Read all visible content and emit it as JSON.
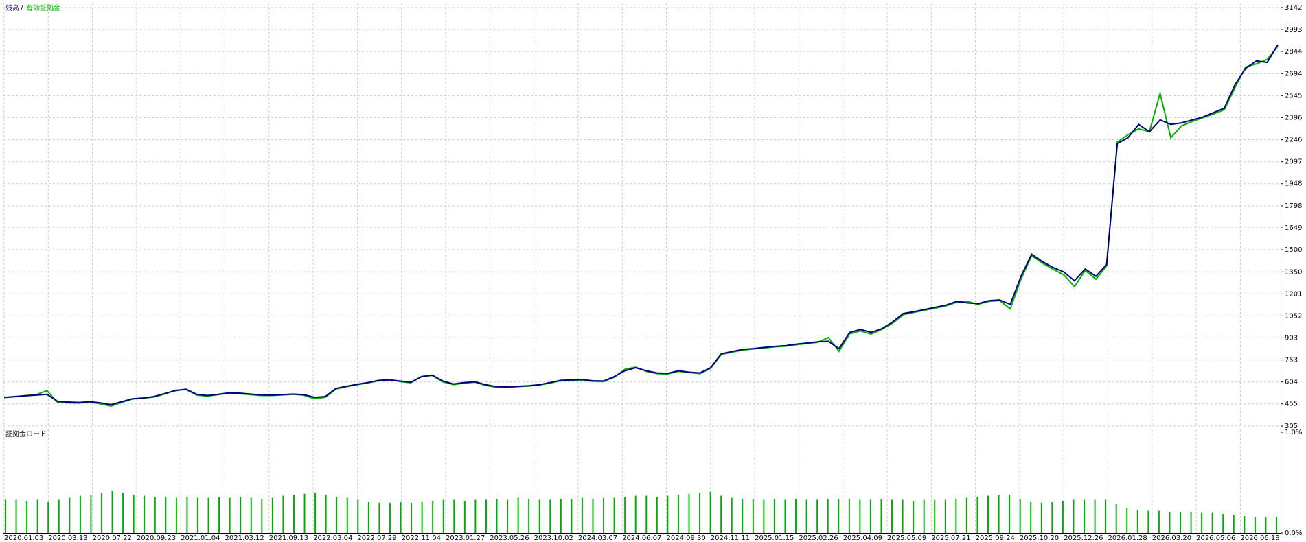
{
  "chart_data": {
    "type": "line",
    "legend": [
      "残高",
      "/",
      "有効証拠金"
    ],
    "ylim": [
      305,
      3142
    ],
    "yticks": [
      3142,
      2993,
      2844,
      2694,
      2545,
      2396,
      2246,
      2097,
      1948,
      1798,
      1649,
      1500,
      1350,
      1201,
      1052,
      903,
      753,
      604,
      455,
      305
    ],
    "grid": true,
    "xticks": [
      "2020.01.03",
      "2020.03.13",
      "2020.07.22",
      "2020.09.23",
      "2021.01.04",
      "2021.03.12",
      "2021.09.13",
      "2022.03.04",
      "2022.07.29",
      "2022.11.04",
      "2023.01.27",
      "2023.05.26",
      "2023.10.02",
      "2024.03.07",
      "2024.06.07",
      "2024.09.30",
      "2024.11.11",
      "2025.01.15",
      "2025.02.26",
      "2025.04.09",
      "2025.05.09",
      "2025.07.21",
      "2025.09.24",
      "2025.10.20",
      "2025.12.26",
      "2026.01.28",
      "2026.03.20",
      "2026.05.06",
      "2026.06.18"
    ],
    "series": [
      {
        "name": "有効証拠金",
        "color": "#00b000",
        "values": [
          498,
          503,
          512,
          518,
          545,
          465,
          462,
          460,
          468,
          455,
          440,
          466,
          488,
          494,
          502,
          522,
          548,
          552,
          515,
          508,
          518,
          528,
          524,
          518,
          512,
          512,
          516,
          520,
          514,
          490,
          500,
          556,
          572,
          585,
          598,
          612,
          622,
          606,
          598,
          642,
          648,
          604,
          586,
          596,
          602,
          580,
          568,
          566,
          572,
          576,
          582,
          596,
          612,
          615,
          618,
          608,
          606,
          636,
          690,
          704,
          676,
          660,
          658,
          676,
          668,
          660,
          696,
          790,
          806,
          820,
          828,
          834,
          842,
          846,
          856,
          864,
          872,
          905,
          812,
          930,
          950,
          928,
          960,
          1002,
          1060,
          1076,
          1090,
          1104,
          1120,
          1145,
          1150,
          1130,
          1150,
          1156,
          1100,
          1300,
          1460,
          1410,
          1368,
          1330,
          1250,
          1360,
          1300,
          1390,
          2230,
          2280,
          2320,
          2300,
          2560,
          2260,
          2340,
          2370,
          2395,
          2420,
          2450,
          2600,
          2740,
          2760,
          2790,
          2880
        ]
      },
      {
        "name": "残高",
        "color": "#00007f",
        "values": [
          500,
          505,
          510,
          515,
          520,
          472,
          468,
          465,
          470,
          462,
          450,
          470,
          490,
          495,
          505,
          525,
          545,
          555,
          520,
          512,
          520,
          530,
          528,
          522,
          516,
          515,
          518,
          522,
          518,
          500,
          505,
          560,
          575,
          588,
          600,
          615,
          618,
          610,
          602,
          640,
          650,
          610,
          590,
          600,
          605,
          585,
          572,
          570,
          575,
          578,
          585,
          600,
          615,
          618,
          620,
          612,
          610,
          640,
          680,
          700,
          680,
          665,
          662,
          680,
          670,
          665,
          700,
          795,
          810,
          825,
          830,
          838,
          845,
          850,
          860,
          868,
          876,
          880,
          830,
          940,
          960,
          940,
          965,
          1010,
          1068,
          1080,
          1095,
          1110,
          1125,
          1150,
          1140,
          1135,
          1155,
          1160,
          1130,
          1320,
          1470,
          1420,
          1380,
          1350,
          1290,
          1370,
          1320,
          1400,
          2220,
          2260,
          2350,
          2300,
          2380,
          2350,
          2360,
          2380,
          2400,
          2430,
          2460,
          2620,
          2730,
          2780,
          2770,
          2890
        ]
      }
    ]
  },
  "load_chart": {
    "type": "bar",
    "label": "証拠金ロード",
    "color": "#00b000",
    "ylim": [
      0,
      1
    ],
    "yticks": [
      {
        "value": 1,
        "label": "1.0%"
      },
      {
        "value": 0,
        "label": "0.0%"
      }
    ],
    "values": [
      0.33,
      0.33,
      0.32,
      0.33,
      0.31,
      0.33,
      0.35,
      0.37,
      0.38,
      0.4,
      0.42,
      0.4,
      0.38,
      0.37,
      0.36,
      0.36,
      0.35,
      0.36,
      0.35,
      0.35,
      0.36,
      0.35,
      0.36,
      0.35,
      0.34,
      0.35,
      0.37,
      0.38,
      0.39,
      0.4,
      0.38,
      0.36,
      0.35,
      0.33,
      0.31,
      0.3,
      0.3,
      0.31,
      0.3,
      0.31,
      0.32,
      0.33,
      0.33,
      0.32,
      0.33,
      0.33,
      0.34,
      0.33,
      0.35,
      0.34,
      0.33,
      0.33,
      0.34,
      0.34,
      0.35,
      0.34,
      0.35,
      0.35,
      0.36,
      0.37,
      0.37,
      0.36,
      0.37,
      0.38,
      0.39,
      0.4,
      0.41,
      0.37,
      0.35,
      0.34,
      0.34,
      0.33,
      0.34,
      0.33,
      0.34,
      0.33,
      0.33,
      0.34,
      0.34,
      0.34,
      0.33,
      0.33,
      0.34,
      0.33,
      0.33,
      0.32,
      0.33,
      0.33,
      0.33,
      0.34,
      0.35,
      0.36,
      0.37,
      0.38,
      0.38,
      0.34,
      0.31,
      0.3,
      0.31,
      0.32,
      0.33,
      0.33,
      0.33,
      0.33,
      0.29,
      0.25,
      0.23,
      0.22,
      0.22,
      0.21,
      0.21,
      0.21,
      0.2,
      0.2,
      0.19,
      0.18,
      0.17,
      0.16,
      0.16,
      0.16
    ]
  }
}
